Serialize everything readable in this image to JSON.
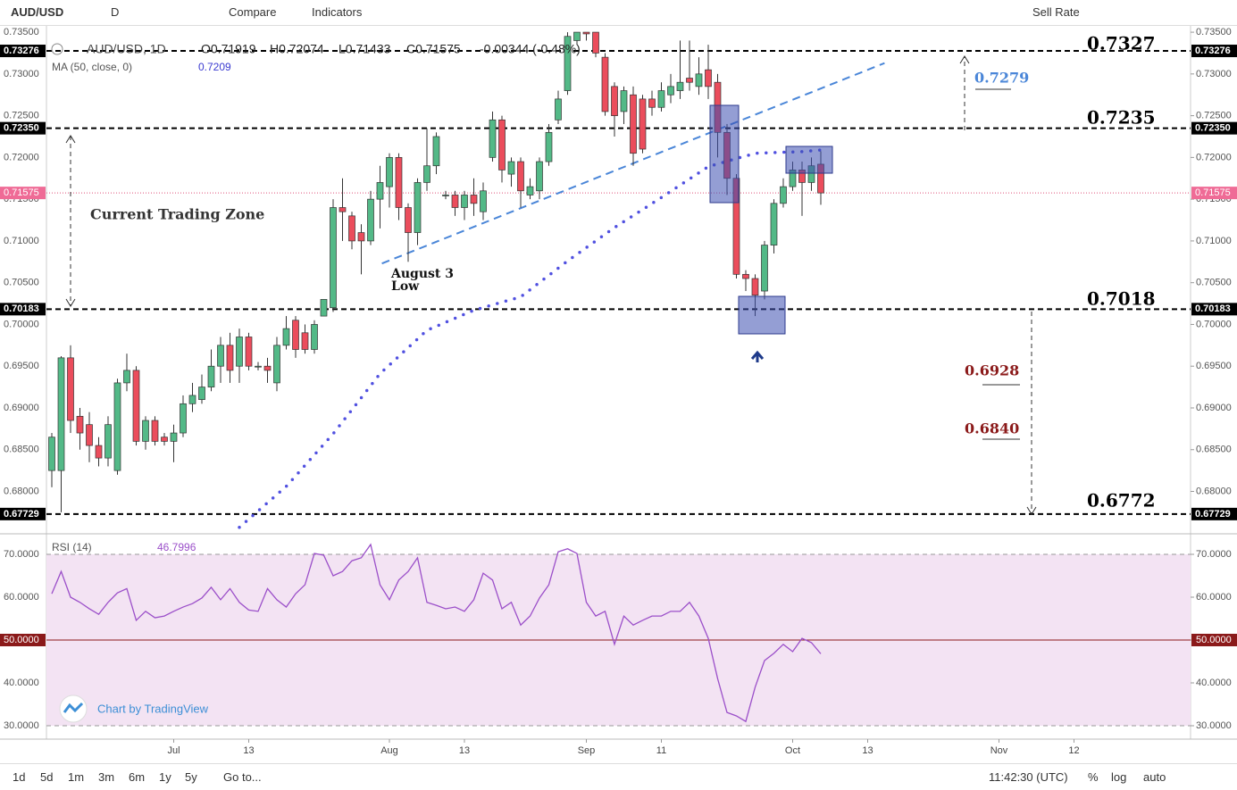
{
  "toolbar": {
    "symbol": "AUD/USD",
    "interval": "D",
    "compare": "Compare",
    "indicators": "Indicators",
    "sell_rate": "Sell Rate"
  },
  "chart_data": [
    {
      "type": "candlestick",
      "title": "AUD/USD, 1D",
      "legend": {
        "open": "O0.71919",
        "high": "H0.72074",
        "low": "L0.71433",
        "close": "C0.71575",
        "change": "-0.00344 (-0.48%)"
      },
      "up_color": "#53b987",
      "down_color": "#eb4d5c",
      "open": [
        0.6825,
        0.6825,
        0.696,
        0.689,
        0.688,
        0.6855,
        0.684,
        0.6825,
        0.693,
        0.6945,
        0.686,
        0.6885,
        0.6865,
        0.686,
        0.687,
        0.6905,
        0.691,
        0.6925,
        0.695,
        0.6975,
        0.695,
        0.6985,
        0.695,
        0.695,
        0.693,
        0.6975,
        0.7005,
        0.699,
        0.697,
        0.701,
        0.702,
        0.714,
        0.713,
        0.711,
        0.71,
        0.715,
        0.7165,
        0.72,
        0.714,
        0.711,
        0.717,
        0.719,
        0.7155,
        0.7155,
        0.714,
        0.7155,
        0.7135,
        0.72,
        0.7245,
        0.718,
        0.7195,
        0.7155,
        0.716,
        0.7195,
        0.7245,
        0.728,
        0.734,
        0.735,
        0.735,
        0.732,
        0.7285,
        0.7255,
        0.7275,
        0.727,
        0.727,
        0.726,
        0.7275,
        0.728,
        0.7295,
        0.7285,
        0.7305,
        0.729,
        0.723,
        0.7175,
        0.706,
        0.7055,
        0.704,
        0.7095,
        0.7145,
        0.7165,
        0.7185,
        0.717,
        0.71919
      ],
      "high": [
        0.687,
        0.6962,
        0.6975,
        0.69,
        0.6895,
        0.6865,
        0.689,
        0.6935,
        0.6965,
        0.695,
        0.689,
        0.689,
        0.687,
        0.688,
        0.6915,
        0.693,
        0.694,
        0.697,
        0.6985,
        0.699,
        0.6995,
        0.699,
        0.6955,
        0.696,
        0.6985,
        0.701,
        0.701,
        0.7,
        0.7005,
        0.703,
        0.715,
        0.7175,
        0.7135,
        0.712,
        0.716,
        0.719,
        0.7205,
        0.7205,
        0.7145,
        0.7175,
        0.7235,
        0.723,
        0.716,
        0.716,
        0.716,
        0.7175,
        0.717,
        0.7255,
        0.725,
        0.72,
        0.72,
        0.7175,
        0.72,
        0.724,
        0.728,
        0.735,
        0.735,
        0.735,
        0.735,
        0.7325,
        0.729,
        0.7285,
        0.7285,
        0.7275,
        0.728,
        0.729,
        0.73,
        0.734,
        0.734,
        0.732,
        0.7335,
        0.73,
        0.724,
        0.718,
        0.7065,
        0.706,
        0.71,
        0.715,
        0.7175,
        0.7195,
        0.7195,
        0.72,
        0.72074
      ],
      "low": [
        0.6805,
        0.6775,
        0.687,
        0.685,
        0.6835,
        0.683,
        0.683,
        0.682,
        0.692,
        0.6855,
        0.685,
        0.6855,
        0.6855,
        0.6835,
        0.6865,
        0.6895,
        0.6905,
        0.692,
        0.693,
        0.693,
        0.693,
        0.6945,
        0.6945,
        0.693,
        0.692,
        0.697,
        0.696,
        0.6965,
        0.6965,
        0.701,
        0.7015,
        0.71,
        0.709,
        0.706,
        0.7095,
        0.7115,
        0.714,
        0.7125,
        0.7075,
        0.7095,
        0.716,
        0.718,
        0.715,
        0.713,
        0.7125,
        0.713,
        0.7125,
        0.7195,
        0.717,
        0.7165,
        0.714,
        0.715,
        0.715,
        0.719,
        0.724,
        0.7275,
        0.7335,
        0.734,
        0.732,
        0.725,
        0.7225,
        0.724,
        0.719,
        0.7205,
        0.725,
        0.7255,
        0.7265,
        0.727,
        0.728,
        0.7275,
        0.727,
        0.72,
        0.7155,
        0.7055,
        0.704,
        0.701,
        0.703,
        0.7085,
        0.714,
        0.716,
        0.713,
        0.716,
        0.71433
      ],
      "close": [
        0.6865,
        0.696,
        0.6885,
        0.687,
        0.6855,
        0.684,
        0.688,
        0.693,
        0.6945,
        0.686,
        0.6885,
        0.686,
        0.686,
        0.687,
        0.6905,
        0.6915,
        0.6925,
        0.695,
        0.6975,
        0.6945,
        0.6985,
        0.695,
        0.695,
        0.6945,
        0.6975,
        0.6995,
        0.697,
        0.697,
        0.7,
        0.703,
        0.714,
        0.7135,
        0.71,
        0.71,
        0.715,
        0.717,
        0.72,
        0.714,
        0.711,
        0.717,
        0.719,
        0.7225,
        0.7155,
        0.714,
        0.7155,
        0.7145,
        0.716,
        0.7245,
        0.7185,
        0.7195,
        0.716,
        0.7165,
        0.7195,
        0.723,
        0.727,
        0.7345,
        0.735,
        0.7348,
        0.7325,
        0.7255,
        0.725,
        0.728,
        0.7205,
        0.721,
        0.726,
        0.728,
        0.7285,
        0.729,
        0.729,
        0.73,
        0.7285,
        0.723,
        0.7175,
        0.706,
        0.7055,
        0.7035,
        0.7095,
        0.7145,
        0.7165,
        0.7185,
        0.717,
        0.719,
        0.71575
      ],
      "xlim": [
        -0.571,
        121.43
      ],
      "xticks": [
        {
          "value": 13,
          "label": "Jul"
        },
        {
          "value": 21,
          "label": "13"
        },
        {
          "value": 36,
          "label": "Aug"
        },
        {
          "value": 44,
          "label": "13"
        },
        {
          "value": 57,
          "label": "Sep"
        },
        {
          "value": 65,
          "label": "11"
        },
        {
          "value": 79,
          "label": "Oct"
        },
        {
          "value": 87,
          "label": "13"
        },
        {
          "value": 101,
          "label": "Nov"
        },
        {
          "value": 109,
          "label": "12"
        }
      ],
      "ylim": [
        0.67503,
        0.73565
      ],
      "yticks": [
        {
          "value": 0.68,
          "label": "0.68000"
        },
        {
          "value": 0.685,
          "label": "0.68500"
        },
        {
          "value": 0.69,
          "label": "0.69000"
        },
        {
          "value": 0.695,
          "label": "0.69500"
        },
        {
          "value": 0.7,
          "label": "0.70000"
        },
        {
          "value": 0.705,
          "label": "0.70500"
        },
        {
          "value": 0.71,
          "label": "0.71000"
        },
        {
          "value": 0.715,
          "label": "0.71500"
        },
        {
          "value": 0.72,
          "label": "0.72000"
        },
        {
          "value": 0.725,
          "label": "0.72500"
        },
        {
          "value": 0.73,
          "label": "0.73000"
        },
        {
          "value": 0.735,
          "label": "0.73500"
        }
      ],
      "levels": [
        0.73276,
        {
          "value": 0.7235,
          "label": "0.72350"
        },
        0.70183,
        0.67729
      ],
      "ma": {
        "name": "MA (50, close, 0)",
        "value_label": "0.7209",
        "color": "#5050e0",
        "x": [
          20,
          25,
          30,
          35,
          40,
          45,
          50,
          55,
          60,
          65,
          70,
          75,
          80,
          82
        ],
        "values": [
          0.6757,
          0.6806,
          0.6869,
          0.6941,
          0.6993,
          0.7017,
          0.7033,
          0.7076,
          0.7116,
          0.7152,
          0.7189,
          0.7205,
          0.7207,
          0.7209
        ]
      },
      "trendline": {
        "color": "#4a86d8",
        "x": [
          35.2,
          88.8
        ],
        "values": [
          0.7073,
          0.7313
        ]
      },
      "annotations": [
        "0.7327",
        "0.7235",
        "0.7018",
        "0.6772",
        "0.7279",
        "0.6928",
        "0.6840",
        "Current Trading Zone",
        "August 3",
        "Low"
      ]
    },
    {
      "type": "line",
      "name": "RSI (14)",
      "value_label": "46.7996",
      "color": "#9b4fc9",
      "midline_color": "#8b1a1a",
      "band": [
        30,
        70
      ],
      "values": [
        60.8,
        66,
        60,
        58.8,
        57.3,
        56,
        58.8,
        61,
        62,
        54.6,
        56.7,
        55.2,
        55.6,
        56.7,
        57.7,
        58.5,
        59.8,
        62.3,
        59.4,
        62,
        58.8,
        57,
        56.7,
        62,
        59.4,
        57.7,
        60.8,
        62.9,
        70.2,
        69.8,
        65,
        66,
        68.5,
        69.2,
        72.3,
        62.9,
        59.4,
        64,
        66,
        69.2,
        58.8,
        58.1,
        57.3,
        57.7,
        56.7,
        59.4,
        65.6,
        64,
        57.3,
        58.8,
        53.5,
        55.6,
        59.8,
        62.9,
        70.6,
        71.3,
        70.2,
        58.8,
        55.6,
        56.7,
        49,
        55.6,
        53.5,
        54.6,
        55.6,
        55.6,
        56.7,
        56.7,
        58.8,
        55.6,
        50.4,
        41,
        33.1,
        32.3,
        31,
        39,
        45.2,
        46.9,
        49,
        47.3,
        50.4,
        49.4,
        46.7996
      ],
      "xlim": [
        -0.571,
        121.43
      ],
      "ylim": [
        26.875,
        74.375
      ],
      "yticks": [
        {
          "value": 30,
          "label": "30.0000"
        },
        {
          "value": 40,
          "label": "40.0000"
        },
        {
          "value": 50,
          "label": "50.0000"
        },
        {
          "value": 60,
          "label": "60.0000"
        },
        {
          "value": 70,
          "label": "70.0000"
        }
      ]
    }
  ],
  "watermark": "Chart by TradingView",
  "bottom_bar": {
    "ranges": [
      "1d",
      "5d",
      "1m",
      "3m",
      "6m",
      "1y",
      "5y"
    ],
    "goto": "Go to...",
    "time": "11:42:30 (UTC)",
    "percent": "%",
    "log": "log",
    "auto": "auto"
  }
}
